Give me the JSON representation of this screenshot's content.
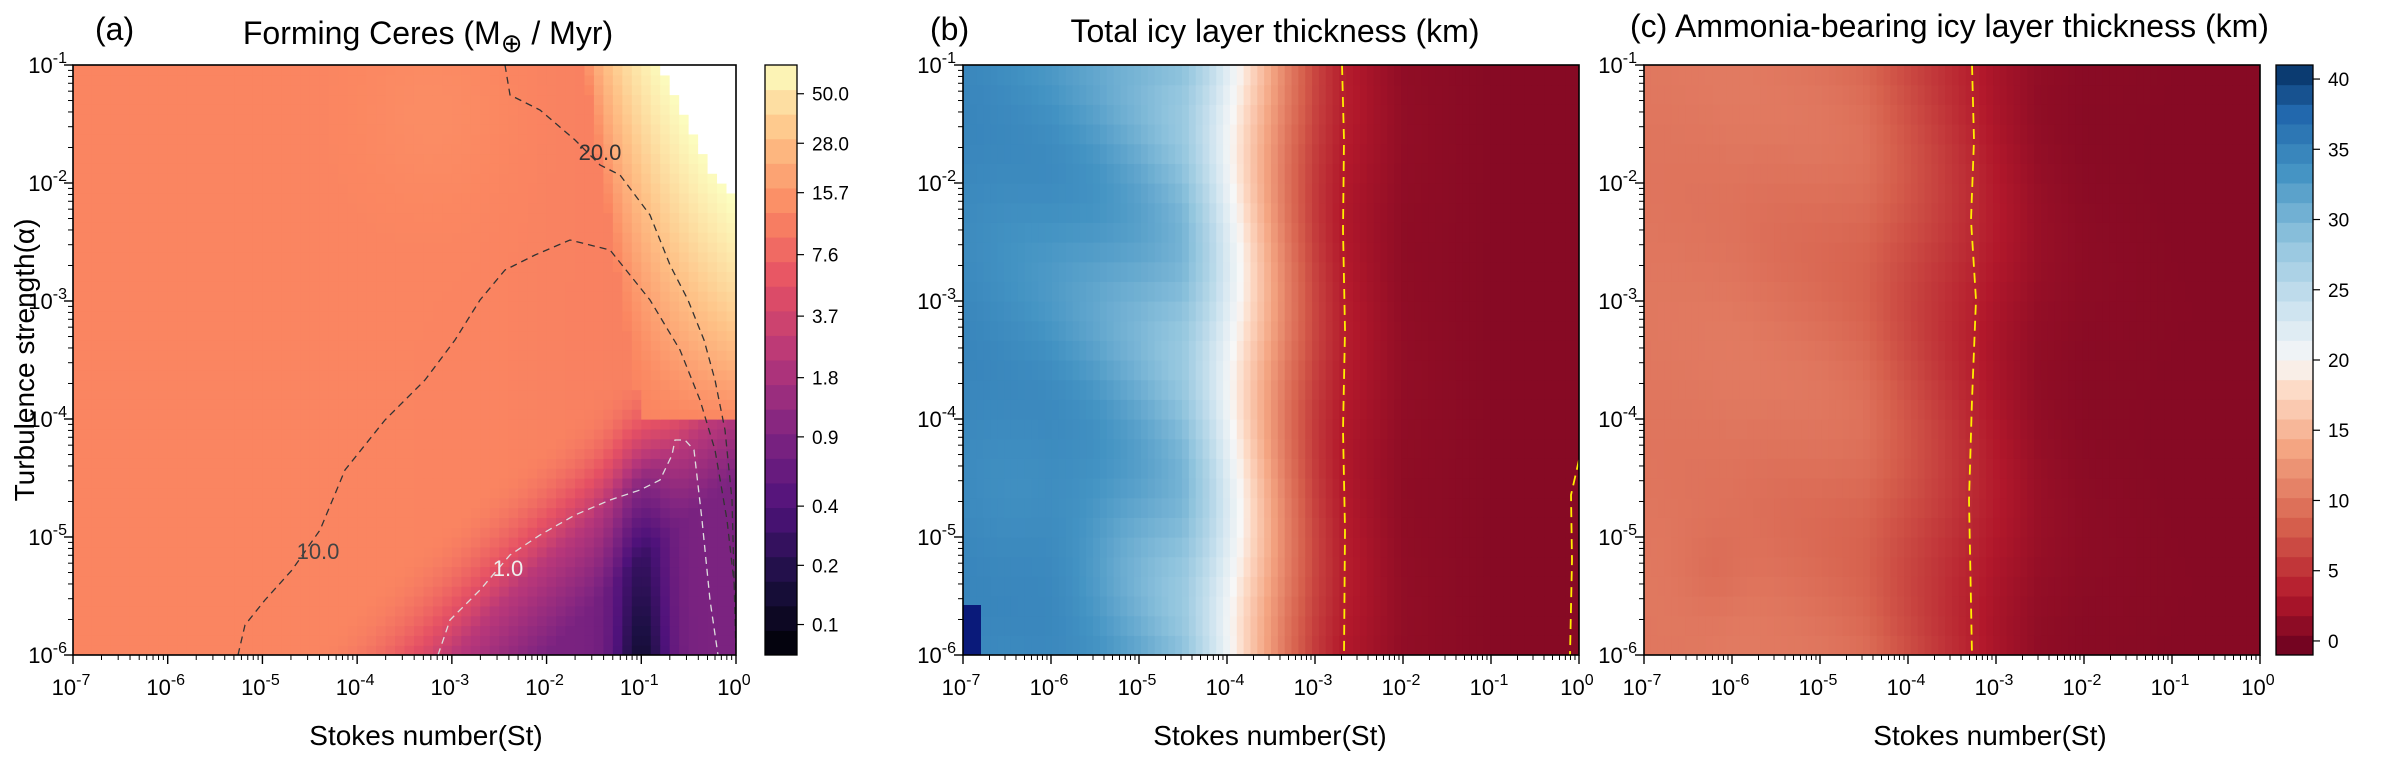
{
  "chart_data": [
    {
      "type": "heatmap",
      "panel_label": "(a)",
      "title": "Forming Ceres (M⊕ / Myr)",
      "title_parts": [
        "Forming Ceres (M",
        "⊕",
        " / Myr)"
      ],
      "xlabel": "Stokes number(St)",
      "ylabel": "Turbulence strength(α)",
      "x_scale": "log",
      "y_scale": "log",
      "xlim": [
        1e-07,
        1
      ],
      "ylim": [
        1e-06,
        0.1
      ],
      "x_ticks": [
        {
          "base": "10",
          "exp": "-7"
        },
        {
          "base": "10",
          "exp": "-6"
        },
        {
          "base": "10",
          "exp": "-5"
        },
        {
          "base": "10",
          "exp": "-4"
        },
        {
          "base": "10",
          "exp": "-3"
        },
        {
          "base": "10",
          "exp": "-2"
        },
        {
          "base": "10",
          "exp": "-1"
        },
        {
          "base": "10",
          "exp": "0"
        }
      ],
      "y_ticks": [
        {
          "base": "10",
          "exp": "-6"
        },
        {
          "base": "10",
          "exp": "-5"
        },
        {
          "base": "10",
          "exp": "-4"
        },
        {
          "base": "10",
          "exp": "-3"
        },
        {
          "base": "10",
          "exp": "-2"
        },
        {
          "base": "10",
          "exp": "-1"
        }
      ],
      "colormap": "magma",
      "colorbar": {
        "scale": "log",
        "range": [
          0.07,
          70
        ],
        "ticks": [
          "50.0",
          "28.0",
          "15.7",
          "7.6",
          "3.7",
          "1.8",
          "0.9",
          "0.4",
          "0.2",
          "0.1"
        ]
      },
      "contours": [
        {
          "label": "20.0",
          "color": "#333333"
        },
        {
          "label": "10.0",
          "color": "#333333"
        },
        {
          "label": "1.0",
          "color": "#eeeeee"
        }
      ],
      "notes": "Plateau near 12 across most of the domain; rate drops toward large St at low alpha (minimum ~0.1 near St=0.1, alpha=1e-6); white (above colorbar max) region at top-right."
    },
    {
      "type": "heatmap",
      "panel_label": "(b)",
      "title": "Total icy layer thickness (km)",
      "xlabel": "Stokes number(St)",
      "ylabel": "",
      "x_scale": "log",
      "y_scale": "log",
      "xlim": [
        1e-07,
        1
      ],
      "ylim": [
        1e-06,
        0.1
      ],
      "x_ticks": [
        {
          "base": "10",
          "exp": "-7"
        },
        {
          "base": "10",
          "exp": "-6"
        },
        {
          "base": "10",
          "exp": "-5"
        },
        {
          "base": "10",
          "exp": "-4"
        },
        {
          "base": "10",
          "exp": "-3"
        },
        {
          "base": "10",
          "exp": "-2"
        },
        {
          "base": "10",
          "exp": "-1"
        },
        {
          "base": "10",
          "exp": "0"
        }
      ],
      "y_ticks": [
        {
          "base": "10",
          "exp": "-6"
        },
        {
          "base": "10",
          "exp": "-5"
        },
        {
          "base": "10",
          "exp": "-4"
        },
        {
          "base": "10",
          "exp": "-3"
        },
        {
          "base": "10",
          "exp": "-2"
        },
        {
          "base": "10",
          "exp": "-1"
        }
      ],
      "colormap": "RdBu (reversed: dark red = 0 km, dark blue = 40 km)",
      "profile_vs_log10_St": [
        [
          -7,
          34.5
        ],
        [
          -6.5,
          34
        ],
        [
          -6,
          33.5
        ],
        [
          -5.5,
          32.5
        ],
        [
          -5,
          31
        ],
        [
          -4.5,
          29
        ],
        [
          -4.2,
          25
        ],
        [
          -3.9,
          20
        ],
        [
          -3.6,
          15
        ],
        [
          -3.3,
          10
        ],
        [
          -3,
          6
        ],
        [
          -2.7,
          3.5
        ],
        [
          -2.4,
          2.5
        ],
        [
          -2,
          1.3
        ],
        [
          -1,
          0.8
        ],
        [
          0,
          0.8
        ]
      ],
      "contours": [
        {
          "label": "",
          "color": "#ffee00",
          "style": "dashed",
          "approx_log10_St": -2.65
        }
      ]
    },
    {
      "type": "heatmap",
      "panel_label": "(c)",
      "title": "Ammonia-bearing icy layer thickness (km)",
      "xlabel": "Stokes number(St)",
      "ylabel": "",
      "x_scale": "log",
      "y_scale": "log",
      "xlim": [
        1e-07,
        1
      ],
      "ylim": [
        1e-06,
        0.1
      ],
      "x_ticks": [
        {
          "base": "10",
          "exp": "-7"
        },
        {
          "base": "10",
          "exp": "-6"
        },
        {
          "base": "10",
          "exp": "-5"
        },
        {
          "base": "10",
          "exp": "-4"
        },
        {
          "base": "10",
          "exp": "-3"
        },
        {
          "base": "10",
          "exp": "-2"
        },
        {
          "base": "10",
          "exp": "-1"
        },
        {
          "base": "10",
          "exp": "0"
        }
      ],
      "y_ticks": [
        {
          "base": "10",
          "exp": "-6"
        },
        {
          "base": "10",
          "exp": "-5"
        },
        {
          "base": "10",
          "exp": "-4"
        },
        {
          "base": "10",
          "exp": "-3"
        },
        {
          "base": "10",
          "exp": "-2"
        },
        {
          "base": "10",
          "exp": "-1"
        }
      ],
      "colormap": "RdBu (reversed)",
      "colorbar": {
        "range": [
          -1,
          41
        ],
        "ticks": [
          "40",
          "35",
          "30",
          "25",
          "20",
          "15",
          "10",
          "5",
          "0"
        ]
      },
      "profile_vs_log10_St": [
        [
          -7,
          10
        ],
        [
          -6,
          10
        ],
        [
          -5,
          9.5
        ],
        [
          -4.5,
          9
        ],
        [
          -4,
          7
        ],
        [
          -3.5,
          5
        ],
        [
          -3,
          3
        ],
        [
          -2.5,
          1.5
        ],
        [
          -2,
          1
        ],
        [
          -1,
          0.8
        ],
        [
          0,
          0.8
        ]
      ],
      "contours": [
        {
          "label": "",
          "color": "#ffee00",
          "style": "dashed",
          "approx_log10_St": -3.35
        }
      ]
    }
  ]
}
